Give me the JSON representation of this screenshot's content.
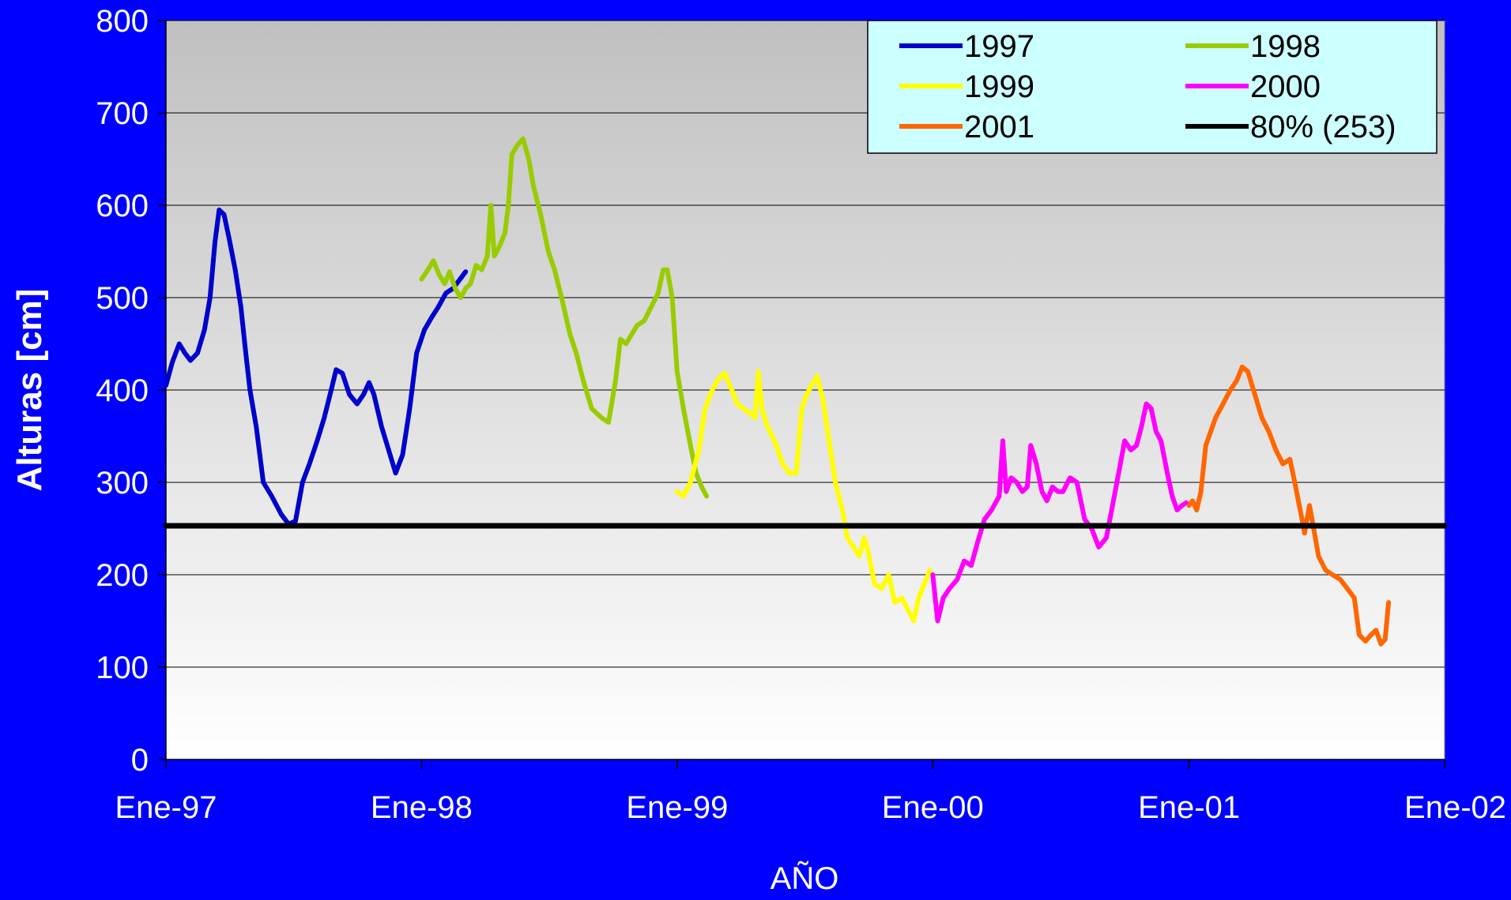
{
  "chart_data": {
    "type": "line",
    "title": "",
    "xlabel": "AÑO",
    "ylabel": "Alturas [cm]",
    "ylim": [
      0,
      800
    ],
    "yticks": [
      0,
      100,
      200,
      300,
      400,
      500,
      600,
      700,
      800
    ],
    "xlim": [
      "1997-01-01",
      "2002-01-01"
    ],
    "xticks": [
      {
        "date": "1997-01-01",
        "label": "Ene-97"
      },
      {
        "date": "1998-01-01",
        "label": "Ene-98"
      },
      {
        "date": "1999-01-01",
        "label": "Ene-99"
      },
      {
        "date": "2000-01-01",
        "label": "Ene-00"
      },
      {
        "date": "2001-01-01",
        "label": "Ene-01"
      },
      {
        "date": "2002-01-01",
        "label": "Ene-02"
      }
    ],
    "grid": "horizontal",
    "legend": {
      "position": "top-right",
      "columns": 2
    },
    "colors": {
      "background": "#0000FF",
      "text": "#FFFFFF",
      "plot_top": "#C0C0C0",
      "plot_bottom": "#FFFFFF",
      "legend_bg": "#CCFFFF"
    },
    "series": [
      {
        "name": "1997",
        "color": "#0000CC",
        "points": [
          [
            "1997-01-01",
            405
          ],
          [
            "1997-01-10",
            430
          ],
          [
            "1997-01-20",
            450
          ],
          [
            "1997-01-28",
            440
          ],
          [
            "1997-02-05",
            432
          ],
          [
            "1997-02-15",
            440
          ],
          [
            "1997-02-25",
            465
          ],
          [
            "1997-03-05",
            500
          ],
          [
            "1997-03-12",
            560
          ],
          [
            "1997-03-18",
            595
          ],
          [
            "1997-03-25",
            590
          ],
          [
            "1997-04-01",
            565
          ],
          [
            "1997-04-10",
            530
          ],
          [
            "1997-04-18",
            490
          ],
          [
            "1997-04-25",
            440
          ],
          [
            "1997-05-01",
            400
          ],
          [
            "1997-05-10",
            360
          ],
          [
            "1997-05-20",
            300
          ],
          [
            "1997-06-01",
            285
          ],
          [
            "1997-06-15",
            265
          ],
          [
            "1997-06-25",
            255
          ],
          [
            "1997-07-05",
            258
          ],
          [
            "1997-07-15",
            300
          ],
          [
            "1997-07-25",
            320
          ],
          [
            "1997-08-05",
            345
          ],
          [
            "1997-08-15",
            370
          ],
          [
            "1997-08-25",
            400
          ],
          [
            "1997-09-01",
            422
          ],
          [
            "1997-09-10",
            418
          ],
          [
            "1997-09-20",
            395
          ],
          [
            "1997-10-01",
            385
          ],
          [
            "1997-10-10",
            395
          ],
          [
            "1997-10-18",
            408
          ],
          [
            "1997-10-25",
            395
          ],
          [
            "1997-11-05",
            360
          ],
          [
            "1997-11-15",
            335
          ],
          [
            "1997-11-25",
            310
          ],
          [
            "1997-12-05",
            330
          ],
          [
            "1997-12-15",
            380
          ],
          [
            "1997-12-25",
            440
          ],
          [
            "1998-01-05",
            465
          ],
          [
            "1998-01-15",
            478
          ],
          [
            "1998-01-25",
            490
          ],
          [
            "1998-02-05",
            505
          ],
          [
            "1998-02-15",
            510
          ],
          [
            "1998-02-25",
            520
          ],
          [
            "1998-03-05",
            528
          ]
        ]
      },
      {
        "name": "1998",
        "color": "#99CC00",
        "points": [
          [
            "1998-01-01",
            520
          ],
          [
            "1998-01-10",
            530
          ],
          [
            "1998-01-18",
            540
          ],
          [
            "1998-01-26",
            525
          ],
          [
            "1998-02-03",
            515
          ],
          [
            "1998-02-10",
            528
          ],
          [
            "1998-02-18",
            510
          ],
          [
            "1998-02-26",
            500
          ],
          [
            "1998-03-05",
            510
          ],
          [
            "1998-03-12",
            515
          ],
          [
            "1998-03-20",
            535
          ],
          [
            "1998-03-28",
            530
          ],
          [
            "1998-04-05",
            545
          ],
          [
            "1998-04-10",
            600
          ],
          [
            "1998-04-15",
            545
          ],
          [
            "1998-04-22",
            555
          ],
          [
            "1998-04-30",
            570
          ],
          [
            "1998-05-05",
            600
          ],
          [
            "1998-05-10",
            655
          ],
          [
            "1998-05-18",
            665
          ],
          [
            "1998-05-26",
            672
          ],
          [
            "1998-06-03",
            650
          ],
          [
            "1998-06-10",
            620
          ],
          [
            "1998-06-20",
            590
          ],
          [
            "1998-07-01",
            550
          ],
          [
            "1998-07-10",
            530
          ],
          [
            "1998-07-20",
            500
          ],
          [
            "1998-08-01",
            460
          ],
          [
            "1998-08-10",
            440
          ],
          [
            "1998-08-20",
            410
          ],
          [
            "1998-09-01",
            380
          ],
          [
            "1998-09-15",
            370
          ],
          [
            "1998-09-25",
            365
          ],
          [
            "1998-10-05",
            410
          ],
          [
            "1998-10-12",
            455
          ],
          [
            "1998-10-20",
            450
          ],
          [
            "1998-10-28",
            460
          ],
          [
            "1998-11-05",
            470
          ],
          [
            "1998-11-15",
            475
          ],
          [
            "1998-11-25",
            490
          ],
          [
            "1998-12-05",
            505
          ],
          [
            "1998-12-12",
            530
          ],
          [
            "1998-12-18",
            530
          ],
          [
            "1998-12-25",
            500
          ],
          [
            "1999-01-01",
            420
          ],
          [
            "1999-01-10",
            380
          ],
          [
            "1999-01-20",
            340
          ],
          [
            "1999-01-28",
            310
          ],
          [
            "1999-02-05",
            295
          ],
          [
            "1999-02-12",
            285
          ]
        ]
      },
      {
        "name": "1999",
        "color": "#FFFF00",
        "points": [
          [
            "1999-01-01",
            290
          ],
          [
            "1999-01-10",
            285
          ],
          [
            "1999-01-20",
            300
          ],
          [
            "1999-02-01",
            335
          ],
          [
            "1999-02-10",
            380
          ],
          [
            "1999-02-20",
            400
          ],
          [
            "1999-03-01",
            412
          ],
          [
            "1999-03-10",
            418
          ],
          [
            "1999-03-20",
            400
          ],
          [
            "1999-03-28",
            385
          ],
          [
            "1999-04-05",
            380
          ],
          [
            "1999-04-15",
            375
          ],
          [
            "1999-04-22",
            370
          ],
          [
            "1999-04-27",
            420
          ],
          [
            "1999-05-02",
            380
          ],
          [
            "1999-05-10",
            360
          ],
          [
            "1999-05-20",
            345
          ],
          [
            "1999-06-01",
            320
          ],
          [
            "1999-06-10",
            310
          ],
          [
            "1999-06-20",
            310
          ],
          [
            "1999-06-28",
            380
          ],
          [
            "1999-07-05",
            395
          ],
          [
            "1999-07-12",
            405
          ],
          [
            "1999-07-20",
            415
          ],
          [
            "1999-07-28",
            390
          ],
          [
            "1999-08-05",
            350
          ],
          [
            "1999-08-15",
            300
          ],
          [
            "1999-08-25",
            270
          ],
          [
            "1999-09-01",
            240
          ],
          [
            "1999-09-10",
            230
          ],
          [
            "1999-09-18",
            220
          ],
          [
            "1999-09-25",
            240
          ],
          [
            "1999-10-01",
            225
          ],
          [
            "1999-10-10",
            190
          ],
          [
            "1999-10-20",
            185
          ],
          [
            "1999-10-30",
            200
          ],
          [
            "1999-11-08",
            170
          ],
          [
            "1999-11-18",
            175
          ],
          [
            "1999-11-28",
            160
          ],
          [
            "1999-12-05",
            150
          ],
          [
            "1999-12-12",
            175
          ],
          [
            "1999-12-20",
            190
          ],
          [
            "1999-12-28",
            205
          ]
        ]
      },
      {
        "name": "2000",
        "color": "#FF00FF",
        "points": [
          [
            "2000-01-01",
            200
          ],
          [
            "2000-01-08",
            150
          ],
          [
            "2000-01-16",
            175
          ],
          [
            "2000-01-25",
            185
          ],
          [
            "2000-02-05",
            195
          ],
          [
            "2000-02-15",
            215
          ],
          [
            "2000-02-25",
            210
          ],
          [
            "2000-03-05",
            235
          ],
          [
            "2000-03-15",
            260
          ],
          [
            "2000-03-25",
            270
          ],
          [
            "2000-04-05",
            285
          ],
          [
            "2000-04-10",
            345
          ],
          [
            "2000-04-15",
            290
          ],
          [
            "2000-04-22",
            305
          ],
          [
            "2000-04-30",
            300
          ],
          [
            "2000-05-08",
            290
          ],
          [
            "2000-05-15",
            295
          ],
          [
            "2000-05-20",
            340
          ],
          [
            "2000-05-28",
            320
          ],
          [
            "2000-06-05",
            290
          ],
          [
            "2000-06-12",
            280
          ],
          [
            "2000-06-20",
            295
          ],
          [
            "2000-06-28",
            290
          ],
          [
            "2000-07-05",
            290
          ],
          [
            "2000-07-15",
            305
          ],
          [
            "2000-07-25",
            300
          ],
          [
            "2000-08-05",
            260
          ],
          [
            "2000-08-15",
            250
          ],
          [
            "2000-08-25",
            230
          ],
          [
            "2000-09-05",
            240
          ],
          [
            "2000-09-15",
            280
          ],
          [
            "2000-09-25",
            320
          ],
          [
            "2000-10-01",
            345
          ],
          [
            "2000-10-10",
            335
          ],
          [
            "2000-10-18",
            340
          ],
          [
            "2000-10-25",
            360
          ],
          [
            "2000-11-01",
            385
          ],
          [
            "2000-11-08",
            380
          ],
          [
            "2000-11-15",
            355
          ],
          [
            "2000-11-22",
            345
          ],
          [
            "2000-12-01",
            310
          ],
          [
            "2000-12-08",
            285
          ],
          [
            "2000-12-15",
            270
          ],
          [
            "2000-12-22",
            275
          ],
          [
            "2000-12-28",
            278
          ]
        ]
      },
      {
        "name": "2001",
        "color": "#FF6600",
        "points": [
          [
            "2001-01-01",
            275
          ],
          [
            "2001-01-06",
            280
          ],
          [
            "2001-01-12",
            270
          ],
          [
            "2001-01-18",
            290
          ],
          [
            "2001-01-25",
            340
          ],
          [
            "2001-02-01",
            355
          ],
          [
            "2001-02-08",
            370
          ],
          [
            "2001-02-15",
            380
          ],
          [
            "2001-02-22",
            390
          ],
          [
            "2001-03-01",
            400
          ],
          [
            "2001-03-10",
            410
          ],
          [
            "2001-03-18",
            425
          ],
          [
            "2001-03-26",
            420
          ],
          [
            "2001-04-05",
            395
          ],
          [
            "2001-04-15",
            370
          ],
          [
            "2001-04-25",
            355
          ],
          [
            "2001-05-05",
            335
          ],
          [
            "2001-05-15",
            320
          ],
          [
            "2001-05-25",
            325
          ],
          [
            "2001-06-01",
            300
          ],
          [
            "2001-06-10",
            265
          ],
          [
            "2001-06-15",
            245
          ],
          [
            "2001-06-22",
            275
          ],
          [
            "2001-06-28",
            250
          ],
          [
            "2001-07-05",
            220
          ],
          [
            "2001-07-15",
            205
          ],
          [
            "2001-07-25",
            200
          ],
          [
            "2001-08-05",
            195
          ],
          [
            "2001-08-15",
            185
          ],
          [
            "2001-08-25",
            175
          ],
          [
            "2001-09-01",
            135
          ],
          [
            "2001-09-10",
            128
          ],
          [
            "2001-09-18",
            135
          ],
          [
            "2001-09-25",
            140
          ],
          [
            "2001-10-02",
            125
          ],
          [
            "2001-10-08",
            130
          ],
          [
            "2001-10-13",
            170
          ]
        ]
      },
      {
        "name": "80% (253)",
        "color": "#000000",
        "points": [
          [
            "1997-01-01",
            253
          ],
          [
            "2002-01-01",
            253
          ]
        ]
      }
    ]
  }
}
